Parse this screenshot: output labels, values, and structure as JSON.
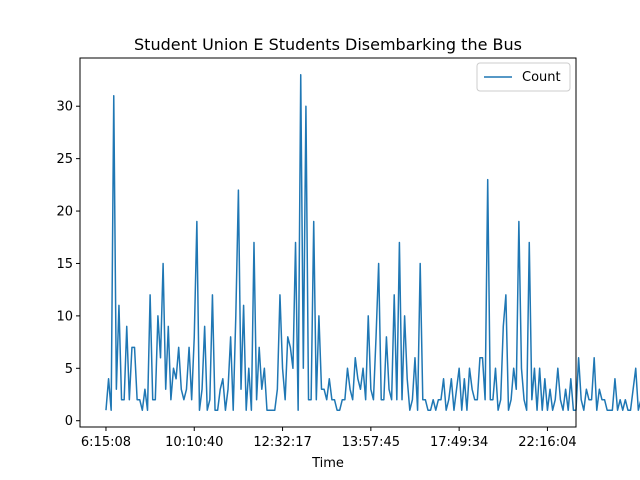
{
  "chart_data": {
    "type": "line",
    "title": "Student Union E Students Disembarking the Bus",
    "xlabel": "Time",
    "ylabel": "",
    "x_tick_labels": [
      "6:15:08",
      "10:10:40",
      "12:32:17",
      "13:57:45",
      "17:49:34",
      "22:16:04"
    ],
    "x_tick_index": [
      0,
      34,
      68,
      102,
      136,
      170
    ],
    "y_ticks": [
      0,
      5,
      10,
      15,
      20,
      25,
      30
    ],
    "ylim": [
      -0.6,
      34.6
    ],
    "xlim": [
      -10,
      181
    ],
    "grid": false,
    "legend_position": "top-right",
    "series": [
      {
        "name": "Count",
        "color": "#1f77b4",
        "values": [
          1,
          4,
          1,
          31,
          3,
          11,
          2,
          2,
          9,
          2,
          7,
          7,
          2,
          2,
          1,
          3,
          1,
          12,
          2,
          2,
          10,
          6,
          15,
          3,
          9,
          2,
          5,
          4,
          7,
          3,
          2,
          3,
          7,
          2,
          8,
          19,
          1,
          3,
          9,
          1,
          2,
          12,
          1,
          1,
          3,
          4,
          1,
          3,
          8,
          1,
          10,
          22,
          3,
          11,
          1,
          5,
          1,
          17,
          2,
          7,
          3,
          5,
          1,
          1,
          1,
          1,
          3,
          12,
          5,
          2,
          8,
          7,
          5,
          17,
          1,
          33,
          5,
          30,
          2,
          2,
          19,
          2,
          10,
          3,
          3,
          2,
          4,
          2,
          2,
          1,
          1,
          2,
          2,
          5,
          3,
          2,
          6,
          4,
          3,
          5,
          2,
          10,
          3,
          2,
          8,
          15,
          2,
          2,
          8,
          3,
          2,
          12,
          2,
          17,
          2,
          10,
          4,
          1,
          2,
          6,
          1,
          15,
          2,
          2,
          1,
          1,
          2,
          1,
          2,
          2,
          4,
          1,
          2,
          4,
          1,
          3,
          5,
          1,
          4,
          1,
          5,
          3,
          2,
          2,
          6,
          6,
          2,
          23,
          2,
          2,
          5,
          1,
          2,
          9,
          12,
          1,
          2,
          5,
          3,
          19,
          5,
          2,
          1,
          17,
          2,
          5,
          1,
          5,
          1,
          4,
          1,
          3,
          1,
          2,
          5,
          2,
          1,
          3,
          1,
          4,
          1,
          1,
          6,
          2,
          1,
          3,
          2,
          2,
          6,
          1,
          3,
          2,
          2,
          1,
          1,
          1,
          4,
          1,
          2,
          1,
          2,
          1,
          1,
          3,
          5,
          1,
          2,
          1,
          7,
          1,
          1,
          2,
          1,
          1,
          2,
          1,
          1,
          1,
          1,
          3,
          1,
          1,
          1,
          11,
          3,
          2,
          5,
          1,
          1,
          1,
          1,
          1,
          1
        ]
      }
    ]
  }
}
